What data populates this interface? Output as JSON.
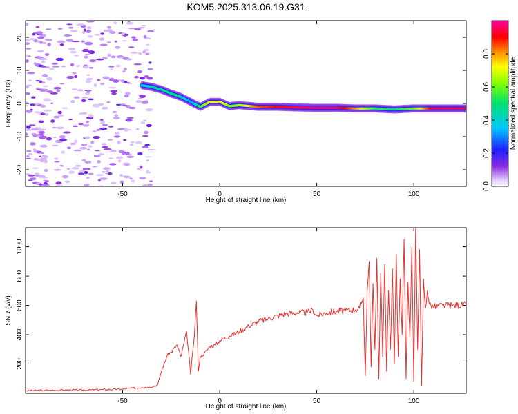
{
  "title": "KOM5.2025.313.06.19.G31",
  "colors": {
    "snr_line": "#e8302c",
    "axis": "#000000"
  },
  "chart_data": [
    {
      "type": "heatmap",
      "title": "KOM5.2025.313.06.19.G31",
      "xlabel": "Height of straight line (km)",
      "ylabel": "Frequency (Hz)",
      "xlim": [
        -100,
        127
      ],
      "ylim": [
        -25,
        25
      ],
      "xticks": [
        -50,
        0,
        50,
        100
      ],
      "xtick_labels": [
        "-50",
        "0",
        "50",
        "100"
      ],
      "yticks": [
        -20,
        -10,
        0,
        10,
        20
      ],
      "ytick_labels": [
        "-20",
        "-10",
        "0",
        "10",
        "20"
      ],
      "colorbar": {
        "label": "Normalized spectral amplitude",
        "range": [
          0,
          1
        ],
        "ticks": [
          0.0,
          0.2,
          0.4,
          0.6,
          0.8
        ],
        "tick_labels": [
          "0.0",
          "0.2",
          "0.4",
          "0.6",
          "0.8"
        ],
        "colormap": "rainbow (purple-blue-cyan-green-yellow-red-magenta)"
      },
      "ridge": {
        "x": [
          -40,
          -35,
          -30,
          -25,
          -20,
          -15,
          -10,
          -5,
          0,
          5,
          10,
          20,
          30,
          40,
          50,
          60,
          70,
          80,
          90,
          100,
          110,
          120,
          127
        ],
        "freq": [
          5.5,
          5.0,
          4.2,
          3.0,
          2.0,
          0.5,
          -1.0,
          0.5,
          0.5,
          -0.8,
          -0.5,
          -1.0,
          -1.0,
          -1.2,
          -1.3,
          -1.3,
          -1.5,
          -1.5,
          -1.8,
          -1.5,
          -1.5,
          -1.5,
          -1.5
        ],
        "amplitude": [
          0.35,
          0.45,
          0.45,
          0.5,
          0.45,
          0.3,
          0.55,
          0.7,
          0.75,
          0.6,
          0.65,
          0.85,
          0.9,
          0.95,
          0.98,
          0.98,
          0.8,
          0.55,
          0.5,
          0.6,
          0.95,
          0.95,
          0.95
        ]
      }
    },
    {
      "type": "line",
      "title": "",
      "xlabel": "Height of straight line (km)",
      "ylabel": "SNR (v/v)",
      "xlim": [
        -100,
        127
      ],
      "ylim": [
        0,
        1130
      ],
      "xticks": [
        -50,
        0,
        50,
        100
      ],
      "xtick_labels": [
        "-50",
        "0",
        "50",
        "100"
      ],
      "yticks": [
        200,
        400,
        600,
        800,
        1000
      ],
      "ytick_labels": [
        "200",
        "400",
        "600",
        "800",
        "1000"
      ],
      "series": [
        {
          "color": "#e8302c",
          "x": [
            -100,
            -90,
            -80,
            -70,
            -60,
            -50,
            -45,
            -40,
            -36,
            -32,
            -30,
            -27,
            -25,
            -22,
            -20,
            -17,
            -15,
            -13,
            -12,
            -11,
            -10,
            -8,
            -5,
            -2,
            0,
            5,
            10,
            15,
            20,
            25,
            30,
            35,
            40,
            45,
            48,
            50,
            55,
            60,
            65,
            70,
            72,
            74,
            75,
            76,
            77,
            78,
            79,
            80,
            81,
            82,
            83,
            84,
            85,
            86,
            87,
            88,
            89,
            90,
            91,
            92,
            93,
            94,
            95,
            96,
            97,
            98,
            99,
            100,
            101,
            102,
            103,
            104,
            105,
            106,
            107,
            108,
            110,
            115,
            120,
            127
          ],
          "y": [
            18,
            20,
            22,
            22,
            25,
            28,
            35,
            40,
            42,
            55,
            150,
            260,
            280,
            330,
            250,
            420,
            130,
            400,
            630,
            150,
            250,
            270,
            320,
            330,
            360,
            390,
            420,
            460,
            490,
            510,
            530,
            545,
            550,
            550,
            570,
            530,
            550,
            560,
            565,
            570,
            580,
            650,
            120,
            700,
            900,
            180,
            750,
            300,
            920,
            100,
            820,
            250,
            880,
            150,
            700,
            300,
            850,
            200,
            950,
            250,
            780,
            400,
            1050,
            100,
            760,
            380,
            1000,
            80,
            1130,
            300,
            980,
            50,
            780,
            580,
            700,
            610,
            590,
            600,
            600,
            605
          ]
        }
      ]
    }
  ]
}
